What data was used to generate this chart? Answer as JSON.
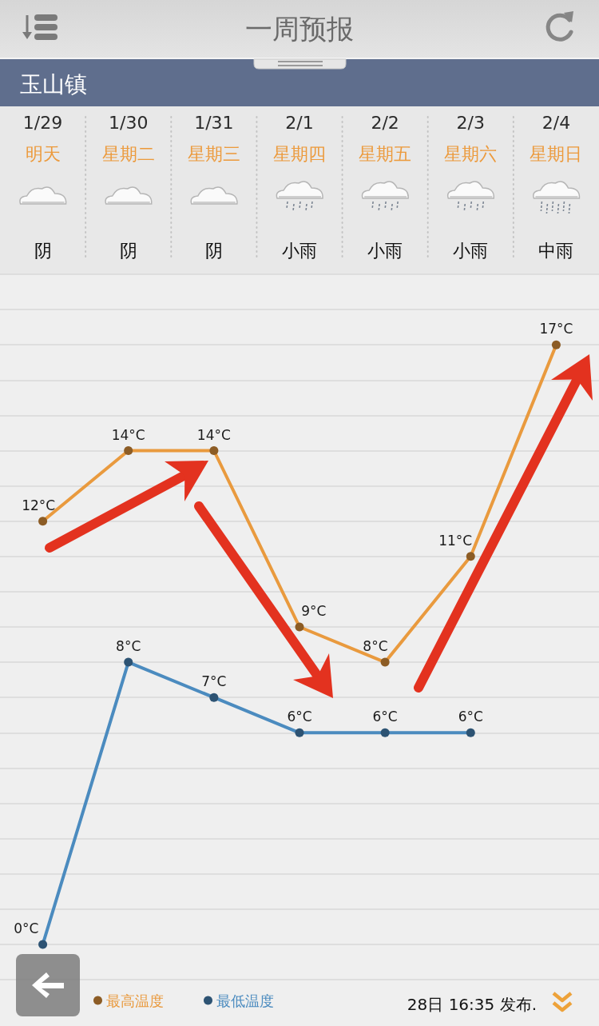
{
  "chart_data": {
    "type": "line",
    "title": "一周预报",
    "subtitle": "玉山镇",
    "categories": [
      "1/29",
      "1/30",
      "1/31",
      "2/1",
      "2/2",
      "2/3",
      "2/4"
    ],
    "series": [
      {
        "name": "最高温度",
        "color": "#e99a3e",
        "values": [
          12,
          14,
          14,
          9,
          8,
          11,
          17
        ],
        "value_labels": [
          "12°C",
          "14°C",
          "14°C",
          "9°C",
          "8°C",
          "11°C",
          "17°C"
        ]
      },
      {
        "name": "最低温度",
        "color": "#4b8bbf",
        "values": [
          0,
          8,
          7,
          6,
          6,
          6,
          null
        ],
        "value_labels": [
          "0°C",
          "8°C",
          "7°C",
          "6°C",
          "6°C",
          "6°C",
          null
        ]
      }
    ],
    "ylim": [
      -1,
      19
    ],
    "yticks": [
      {
        "value": -1,
        "label": null
      },
      {
        "value": 0,
        "label": null
      },
      {
        "value": 1,
        "label": null
      },
      {
        "value": 2,
        "label": null
      },
      {
        "value": 3,
        "label": null
      },
      {
        "value": 4,
        "label": null
      },
      {
        "value": 5,
        "label": null
      },
      {
        "value": 6,
        "label": null
      },
      {
        "value": 7,
        "label": null
      },
      {
        "value": 8,
        "label": null
      },
      {
        "value": 9,
        "label": null
      },
      {
        "value": 10,
        "label": null
      },
      {
        "value": 11,
        "label": null
      },
      {
        "value": 12,
        "label": null
      },
      {
        "value": 13,
        "label": null
      },
      {
        "value": 14,
        "label": null
      },
      {
        "value": 15,
        "label": null
      },
      {
        "value": 16,
        "label": null
      },
      {
        "value": 17,
        "label": null
      },
      {
        "value": 18,
        "label": null
      },
      {
        "value": 19,
        "label": null
      }
    ],
    "grid": "y",
    "legend": "bottom left",
    "tick_labels": "x",
    "marker": "circle",
    "line_style": "solid",
    "annotations": [
      "明天",
      "星期二",
      "星期三",
      "星期四",
      "星期五",
      "星期六",
      "星期日",
      "阴",
      "阴",
      "阴",
      "小雨",
      "小雨",
      "小雨",
      "中雨",
      "28日 16:35 发布."
    ]
  }
}
